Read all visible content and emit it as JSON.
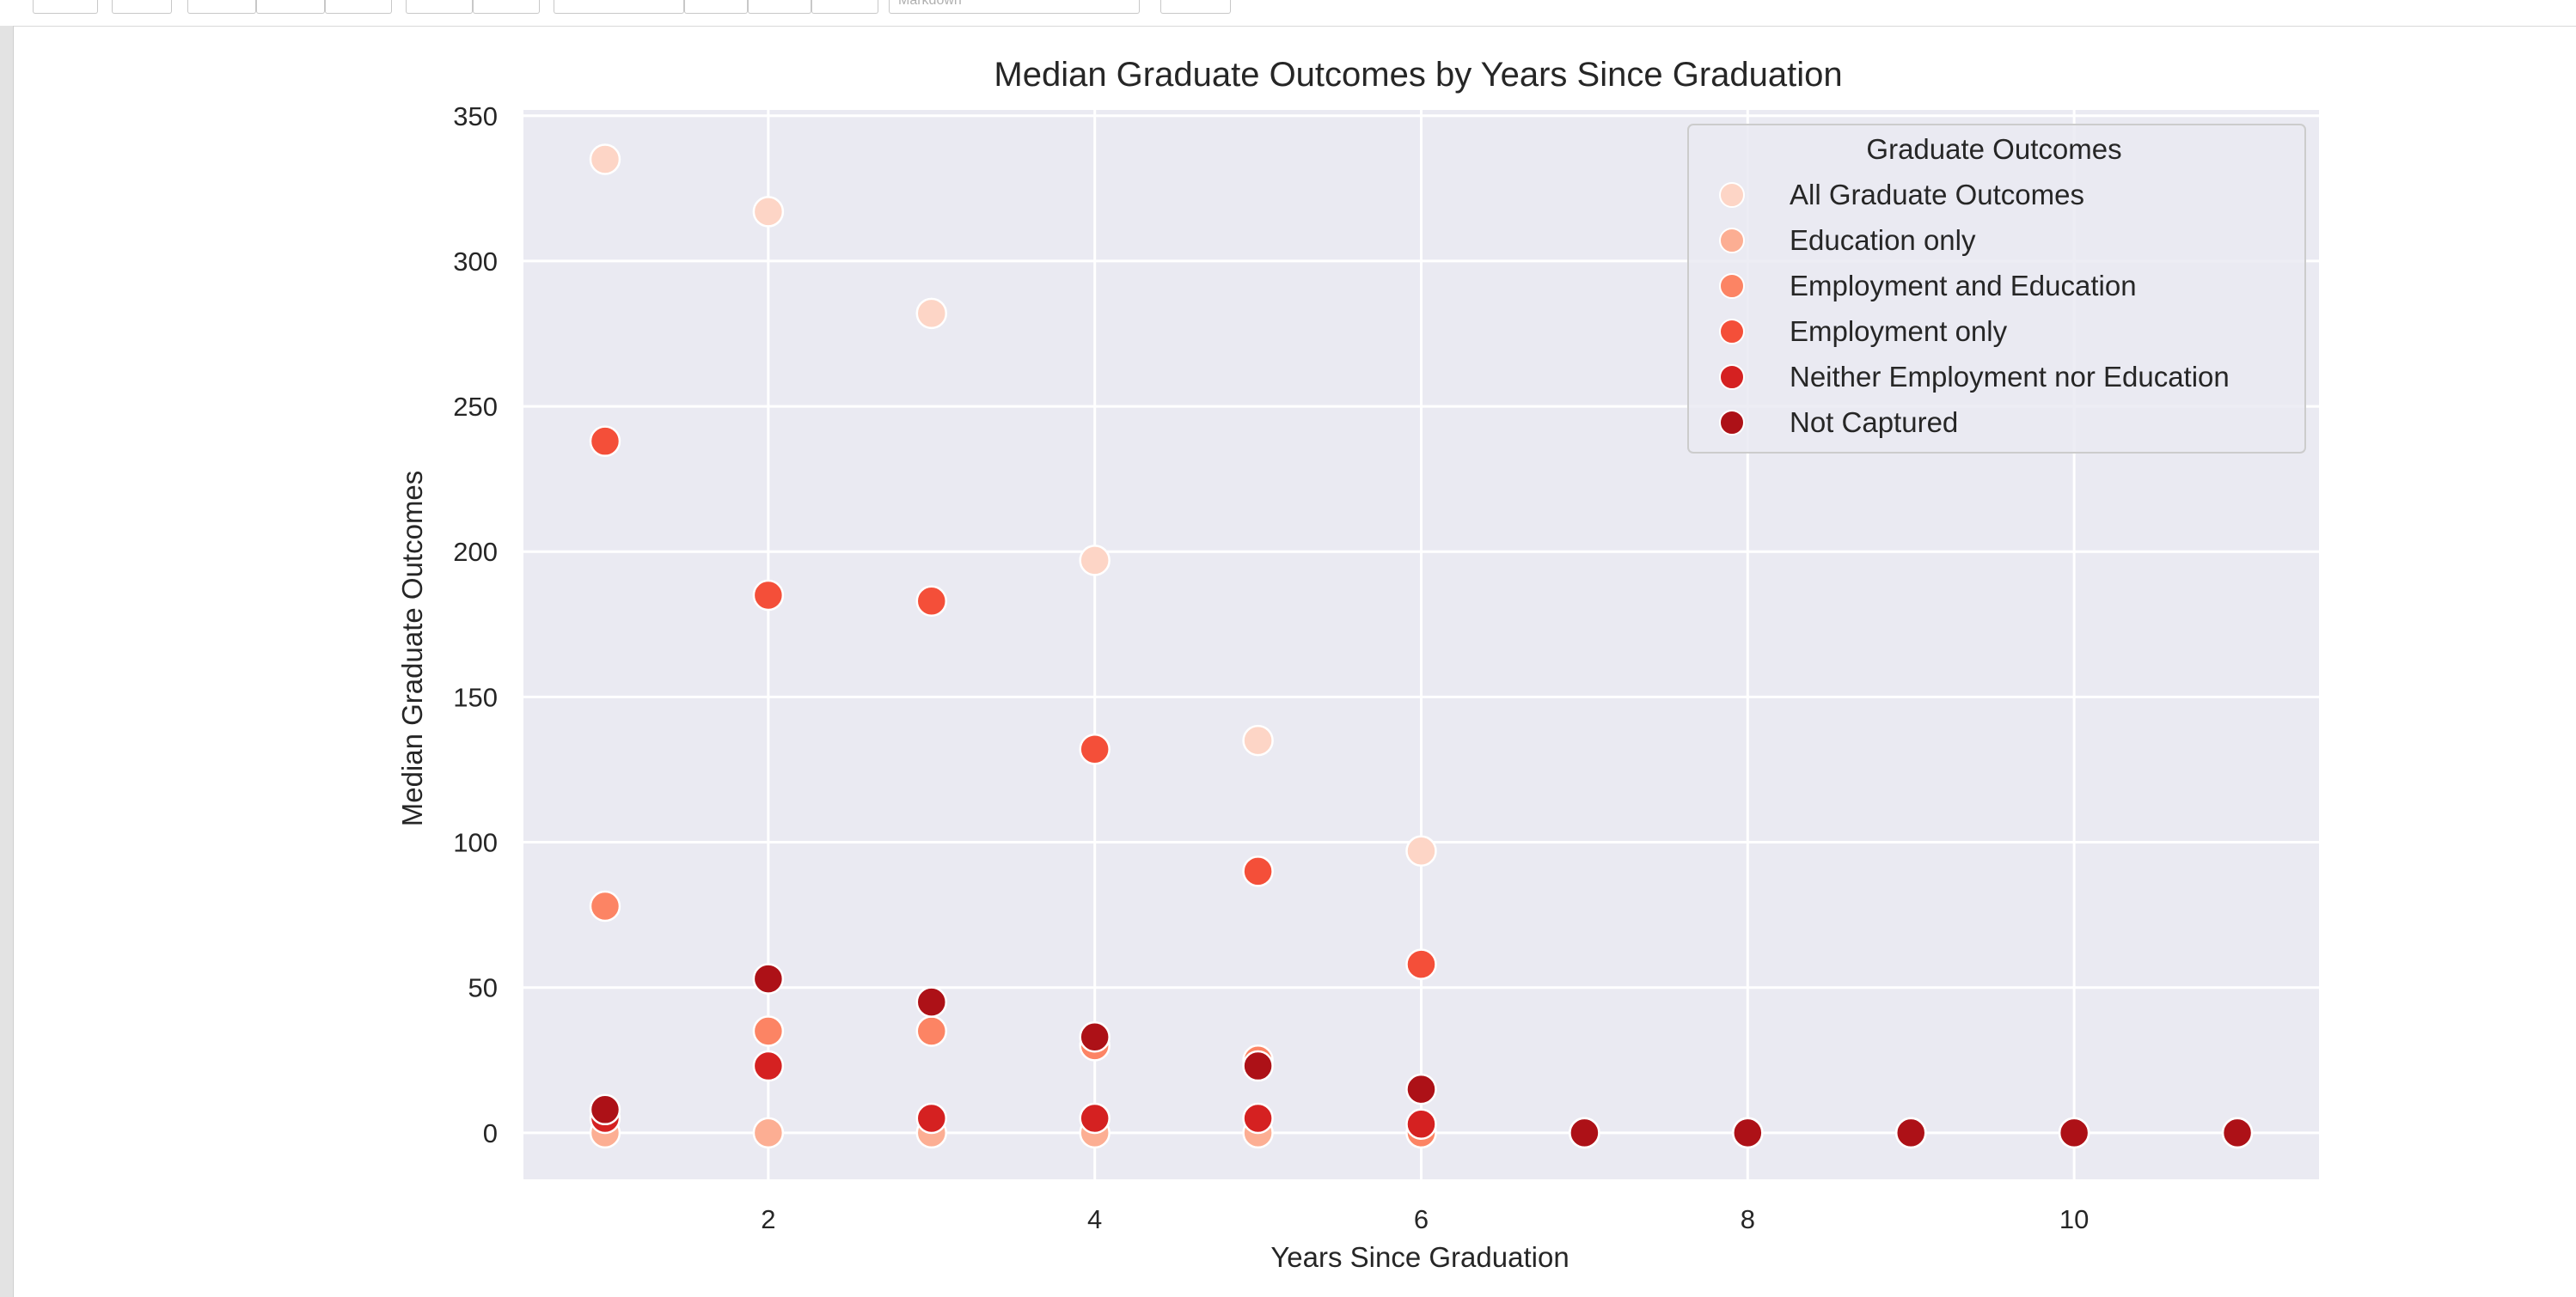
{
  "toolbar": {
    "cell_type_value": "Markdown",
    "buttons": [
      "save-icon",
      "add-cell-icon",
      "cut-icon",
      "copy-icon",
      "paste-icon",
      "move-up-icon",
      "move-down-icon",
      "run-icon",
      "stop-icon",
      "restart-icon",
      "fast-forward-icon",
      "keyboard-icon"
    ]
  },
  "chart_data": {
    "type": "scatter",
    "title": "Median Graduate Outcomes by Years Since Graduation",
    "xlabel": "Years Since Graduation",
    "ylabel": "Median Graduate Outcomes",
    "xlim": [
      0.5,
      11.5
    ],
    "ylim": [
      -16,
      352
    ],
    "xticks": [
      2,
      4,
      6,
      8,
      10
    ],
    "yticks": [
      0,
      50,
      100,
      150,
      200,
      250,
      300,
      350
    ],
    "grid": true,
    "legend": {
      "title": "Graduate Outcomes",
      "placement": "top-right"
    },
    "series": [
      {
        "name": "All Graduate Outcomes",
        "color": "#fdd5c6",
        "points": [
          [
            1,
            335
          ],
          [
            2,
            317
          ],
          [
            3,
            282
          ],
          [
            4,
            197
          ],
          [
            5,
            135
          ],
          [
            6,
            97
          ],
          [
            7,
            0
          ],
          [
            8,
            0
          ],
          [
            9,
            0
          ],
          [
            10,
            0
          ],
          [
            11,
            0
          ]
        ]
      },
      {
        "name": "Education only",
        "color": "#fcae93",
        "points": [
          [
            1,
            0
          ],
          [
            2,
            0
          ],
          [
            3,
            0
          ],
          [
            4,
            0
          ],
          [
            5,
            0
          ],
          [
            6,
            0
          ],
          [
            7,
            0
          ],
          [
            8,
            0
          ],
          [
            9,
            0
          ],
          [
            10,
            0
          ],
          [
            11,
            0
          ]
        ]
      },
      {
        "name": "Employment and Education",
        "color": "#fc8464",
        "points": [
          [
            1,
            78
          ],
          [
            2,
            35
          ],
          [
            3,
            35
          ],
          [
            4,
            30
          ],
          [
            5,
            25
          ],
          [
            6,
            0
          ],
          [
            7,
            0
          ],
          [
            8,
            0
          ],
          [
            9,
            0
          ],
          [
            10,
            0
          ],
          [
            11,
            0
          ]
        ]
      },
      {
        "name": "Employment only",
        "color": "#f44f39",
        "points": [
          [
            1,
            238
          ],
          [
            2,
            185
          ],
          [
            3,
            183
          ],
          [
            4,
            132
          ],
          [
            5,
            90
          ],
          [
            6,
            58
          ],
          [
            7,
            0
          ],
          [
            8,
            0
          ],
          [
            9,
            0
          ],
          [
            10,
            0
          ],
          [
            11,
            0
          ]
        ]
      },
      {
        "name": "Neither Employment nor Education",
        "color": "#d52121",
        "points": [
          [
            1,
            5
          ],
          [
            2,
            23
          ],
          [
            3,
            5
          ],
          [
            4,
            5
          ],
          [
            5,
            5
          ],
          [
            6,
            3
          ],
          [
            7,
            0
          ],
          [
            8,
            0
          ],
          [
            9,
            0
          ],
          [
            10,
            0
          ],
          [
            11,
            0
          ]
        ]
      },
      {
        "name": "Not Captured",
        "color": "#ad1117",
        "points": [
          [
            1,
            8
          ],
          [
            2,
            53
          ],
          [
            3,
            45
          ],
          [
            4,
            33
          ],
          [
            5,
            23
          ],
          [
            6,
            15
          ],
          [
            7,
            0
          ],
          [
            8,
            0
          ],
          [
            9,
            0
          ],
          [
            10,
            0
          ],
          [
            11,
            0
          ]
        ]
      }
    ]
  }
}
